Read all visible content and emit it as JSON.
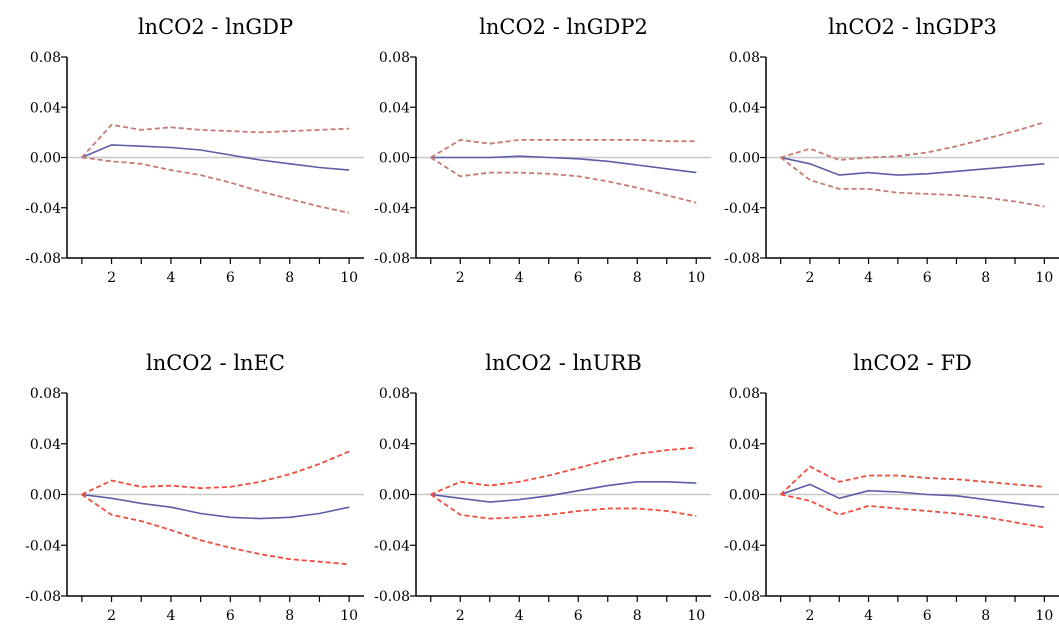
{
  "chart_data": [
    {
      "type": "line",
      "title": "lnCO2 - lnGDP",
      "x": [
        1,
        2,
        3,
        4,
        5,
        6,
        7,
        8,
        9,
        10
      ],
      "series": [
        {
          "role": "response",
          "values": [
            0.0,
            0.01,
            0.009,
            0.008,
            0.006,
            0.002,
            -0.002,
            -0.005,
            -0.008,
            -0.01
          ]
        },
        {
          "role": "upper",
          "values": [
            0.0,
            0.026,
            0.022,
            0.024,
            0.022,
            0.021,
            0.02,
            0.021,
            0.022,
            0.023
          ]
        },
        {
          "role": "lower",
          "values": [
            0.0,
            -0.003,
            -0.005,
            -0.01,
            -0.014,
            -0.02,
            -0.027,
            -0.033,
            -0.039,
            -0.044
          ]
        }
      ],
      "xticks": [
        "2",
        "4",
        "6",
        "8",
        "10"
      ],
      "xtick_values": [
        2,
        4,
        6,
        8,
        10
      ],
      "yticks": [
        "0.08",
        "0.04",
        "0.00",
        "-0.04",
        "-0.08"
      ],
      "ytick_values": [
        0.08,
        0.04,
        0.0,
        -0.04,
        -0.08
      ],
      "ylim": [
        -0.08,
        0.08
      ],
      "xlim": [
        0.5,
        10.5
      ],
      "zero_line": true
    },
    {
      "type": "line",
      "title": "lnCO2 - lnGDP2",
      "x": [
        1,
        2,
        3,
        4,
        5,
        6,
        7,
        8,
        9,
        10
      ],
      "series": [
        {
          "role": "response",
          "values": [
            0.0,
            0.0,
            0.0,
            0.001,
            0.0,
            -0.001,
            -0.003,
            -0.006,
            -0.009,
            -0.012
          ]
        },
        {
          "role": "upper",
          "values": [
            0.0,
            0.014,
            0.011,
            0.014,
            0.014,
            0.014,
            0.014,
            0.014,
            0.013,
            0.013
          ]
        },
        {
          "role": "lower",
          "values": [
            0.0,
            -0.015,
            -0.012,
            -0.012,
            -0.013,
            -0.015,
            -0.019,
            -0.024,
            -0.03,
            -0.036
          ]
        }
      ],
      "xticks": [
        "2",
        "4",
        "6",
        "8",
        "10"
      ],
      "xtick_values": [
        2,
        4,
        6,
        8,
        10
      ],
      "yticks": [
        "0.08",
        "0.04",
        "0.00",
        "-0.04",
        "-0.08"
      ],
      "ytick_values": [
        0.08,
        0.04,
        0.0,
        -0.04,
        -0.08
      ],
      "ylim": [
        -0.08,
        0.08
      ],
      "xlim": [
        0.5,
        10.5
      ],
      "zero_line": true
    },
    {
      "type": "line",
      "title": "lnCO2 - lnGDP3",
      "x": [
        1,
        2,
        3,
        4,
        5,
        6,
        7,
        8,
        9,
        10
      ],
      "series": [
        {
          "role": "response",
          "values": [
            0.0,
            -0.005,
            -0.014,
            -0.012,
            -0.014,
            -0.013,
            -0.011,
            -0.009,
            -0.007,
            -0.005
          ]
        },
        {
          "role": "upper",
          "values": [
            0.0,
            0.007,
            -0.002,
            0.0,
            0.001,
            0.004,
            0.009,
            0.015,
            0.021,
            0.028
          ]
        },
        {
          "role": "lower",
          "values": [
            0.0,
            -0.018,
            -0.025,
            -0.025,
            -0.028,
            -0.029,
            -0.03,
            -0.032,
            -0.035,
            -0.039
          ]
        }
      ],
      "xticks": [
        "2",
        "4",
        "6",
        "8",
        "10"
      ],
      "xtick_values": [
        2,
        4,
        6,
        8,
        10
      ],
      "yticks": [
        "0.08",
        "0.04",
        "0.00",
        "-0.04",
        "-0.08"
      ],
      "ytick_values": [
        0.08,
        0.04,
        0.0,
        -0.04,
        -0.08
      ],
      "ylim": [
        -0.08,
        0.08
      ],
      "xlim": [
        0.5,
        10.5
      ],
      "zero_line": true
    },
    {
      "type": "line",
      "title": "lnCO2 - lnEC",
      "x": [
        1,
        2,
        3,
        4,
        5,
        6,
        7,
        8,
        9,
        10
      ],
      "series": [
        {
          "role": "response",
          "values": [
            0.0,
            -0.003,
            -0.007,
            -0.01,
            -0.015,
            -0.018,
            -0.019,
            -0.018,
            -0.015,
            -0.01
          ]
        },
        {
          "role": "upper",
          "values": [
            0.0,
            0.011,
            0.006,
            0.007,
            0.005,
            0.006,
            0.01,
            0.016,
            0.024,
            0.034
          ]
        },
        {
          "role": "lower",
          "values": [
            0.0,
            -0.016,
            -0.021,
            -0.028,
            -0.036,
            -0.042,
            -0.047,
            -0.051,
            -0.053,
            -0.055
          ]
        }
      ],
      "xticks": [
        "2",
        "4",
        "6",
        "8",
        "10"
      ],
      "xtick_values": [
        2,
        4,
        6,
        8,
        10
      ],
      "yticks": [
        "0.08",
        "0.04",
        "0.00",
        "-0.04",
        "-0.08"
      ],
      "ytick_values": [
        0.08,
        0.04,
        0.0,
        -0.04,
        -0.08
      ],
      "ylim": [
        -0.08,
        0.08
      ],
      "xlim": [
        0.5,
        10.5
      ],
      "zero_line": true
    },
    {
      "type": "line",
      "title": "lnCO2 - lnURB",
      "x": [
        1,
        2,
        3,
        4,
        5,
        6,
        7,
        8,
        9,
        10
      ],
      "series": [
        {
          "role": "response",
          "values": [
            0.0,
            -0.003,
            -0.006,
            -0.004,
            -0.001,
            0.003,
            0.007,
            0.01,
            0.01,
            0.009
          ]
        },
        {
          "role": "upper",
          "values": [
            0.0,
            0.01,
            0.007,
            0.01,
            0.015,
            0.021,
            0.027,
            0.032,
            0.035,
            0.037
          ]
        },
        {
          "role": "lower",
          "values": [
            0.0,
            -0.016,
            -0.019,
            -0.018,
            -0.016,
            -0.013,
            -0.011,
            -0.011,
            -0.013,
            -0.017
          ]
        }
      ],
      "xticks": [
        "2",
        "4",
        "6",
        "8",
        "10"
      ],
      "xtick_values": [
        2,
        4,
        6,
        8,
        10
      ],
      "yticks": [
        "0.08",
        "0.04",
        "0.00",
        "-0.04",
        "-0.08"
      ],
      "ytick_values": [
        0.08,
        0.04,
        0.0,
        -0.04,
        -0.08
      ],
      "ylim": [
        -0.08,
        0.08
      ],
      "xlim": [
        0.5,
        10.5
      ],
      "zero_line": true
    },
    {
      "type": "line",
      "title": "lnCO2 - FD",
      "x": [
        1,
        2,
        3,
        4,
        5,
        6,
        7,
        8,
        9,
        10
      ],
      "series": [
        {
          "role": "response",
          "values": [
            0.0,
            0.008,
            -0.003,
            0.003,
            0.002,
            0.0,
            -0.001,
            -0.004,
            -0.007,
            -0.01
          ]
        },
        {
          "role": "upper",
          "values": [
            0.0,
            0.022,
            0.01,
            0.015,
            0.015,
            0.013,
            0.012,
            0.01,
            0.008,
            0.006
          ]
        },
        {
          "role": "lower",
          "values": [
            0.0,
            -0.005,
            -0.016,
            -0.009,
            -0.011,
            -0.013,
            -0.015,
            -0.018,
            -0.022,
            -0.026
          ]
        }
      ],
      "xticks": [
        "2",
        "4",
        "6",
        "8",
        "10"
      ],
      "xtick_values": [
        2,
        4,
        6,
        8,
        10
      ],
      "yticks": [
        "0.08",
        "0.04",
        "0.00",
        "-0.04",
        "-0.08"
      ],
      "ytick_values": [
        0.08,
        0.04,
        0.0,
        -0.04,
        -0.08
      ],
      "ylim": [
        -0.08,
        0.08
      ],
      "xlim": [
        0.5,
        10.5
      ],
      "zero_line": true
    }
  ],
  "colors": {
    "response": "#5b5ea6",
    "band_top_row": "#c77a73",
    "band_bottom_row": "#ee4e3e",
    "zero_line": "#c8c8c8",
    "axis": "#000000"
  }
}
